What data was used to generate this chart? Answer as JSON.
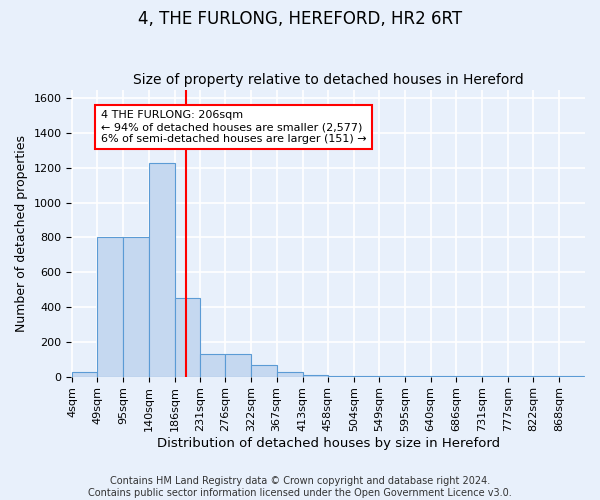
{
  "title": "4, THE FURLONG, HEREFORD, HR2 6RT",
  "subtitle": "Size of property relative to detached houses in Hereford",
  "xlabel": "Distribution of detached houses by size in Hereford",
  "ylabel": "Number of detached properties",
  "bar_edges": [
    4,
    49,
    95,
    140,
    186,
    231,
    276,
    322,
    367,
    413,
    458,
    504,
    549,
    595,
    640,
    686,
    731,
    777,
    822,
    868,
    913
  ],
  "bar_heights": [
    25,
    800,
    800,
    1230,
    450,
    130,
    130,
    65,
    25,
    10,
    5,
    3,
    3,
    3,
    3,
    3,
    3,
    3,
    3,
    5
  ],
  "bar_color": "#c5d8f0",
  "bar_edge_color": "#5b9bd5",
  "vline_x": 206,
  "vline_color": "red",
  "annotation_text": "4 THE FURLONG: 206sqm\n← 94% of detached houses are smaller (2,577)\n6% of semi-detached houses are larger (151) →",
  "annotation_box_color": "white",
  "annotation_box_edge_color": "red",
  "ylim": [
    0,
    1650
  ],
  "yticks": [
    0,
    200,
    400,
    600,
    800,
    1000,
    1200,
    1400,
    1600
  ],
  "bg_color": "#e8f0fb",
  "grid_color": "white",
  "footer": "Contains HM Land Registry data © Crown copyright and database right 2024.\nContains public sector information licensed under the Open Government Licence v3.0.",
  "title_fontsize": 12,
  "subtitle_fontsize": 10,
  "xlabel_fontsize": 9.5,
  "ylabel_fontsize": 9,
  "tick_fontsize": 8,
  "footer_fontsize": 7,
  "annotation_fontsize": 8
}
